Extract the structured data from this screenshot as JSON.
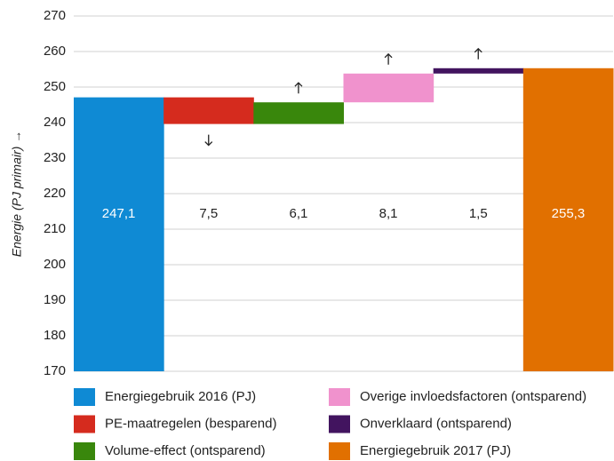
{
  "chart_data": {
    "type": "waterfall",
    "y_label": "Energie (PJ primair) →",
    "categories": [
      "Energiegebruik 2016 (PJ)",
      "PE-maatregelen (besparend)",
      "Volume-effect (ontsparend)",
      "Overige invloedsfactoren (ontsparend)",
      "Onverklaard (ontsparend)",
      "Energiegebruik 2017 (PJ)"
    ],
    "values": [
      247.1,
      -7.5,
      6.1,
      8.1,
      1.5,
      255.3
    ],
    "value_labels": [
      "247,1",
      "7,5",
      "6,1",
      "8,1",
      "1,5",
      "255,3"
    ],
    "measure": [
      "absolute",
      "relative",
      "relative",
      "relative",
      "relative",
      "absolute"
    ],
    "colors": [
      "#0f8ad4",
      "#d52b1e",
      "#39870c",
      "#f092cd",
      "#42145f",
      "#e17000"
    ],
    "ylim": [
      170,
      270
    ],
    "yticks": [
      170,
      180,
      190,
      200,
      210,
      220,
      230,
      240,
      250,
      260,
      270
    ],
    "grid": true
  }
}
